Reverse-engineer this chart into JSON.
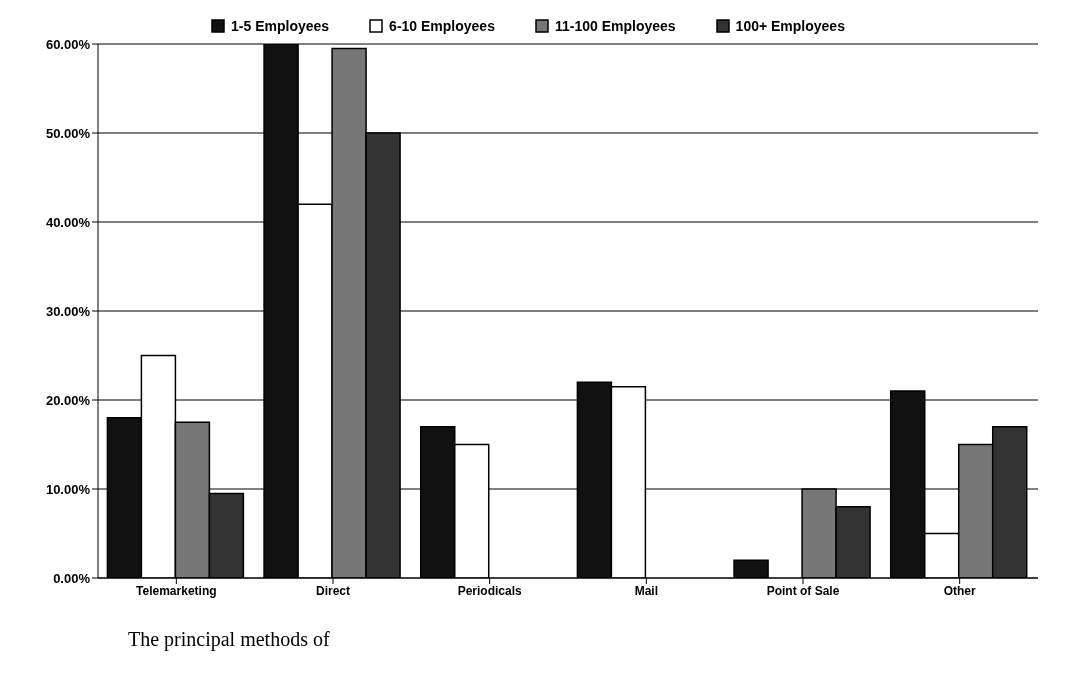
{
  "chart_data": {
    "type": "bar",
    "categories": [
      "Telemarketing",
      "Direct",
      "Periodicals",
      "Mail",
      "Point of Sale",
      "Other"
    ],
    "series": [
      {
        "name": "1-5 Employees",
        "color": "#111111",
        "values": [
          18,
          60,
          17,
          22,
          2,
          21
        ]
      },
      {
        "name": "6-10 Employees",
        "color": "#ffffff",
        "values": [
          25,
          42,
          15,
          21.5,
          0,
          5
        ]
      },
      {
        "name": "11-100 Employees",
        "color": "#777777",
        "values": [
          17.5,
          59.5,
          0,
          0,
          10,
          15
        ]
      },
      {
        "name": "100+ Employees",
        "color": "#333333",
        "values": [
          9.5,
          50,
          0,
          0,
          8,
          17
        ]
      }
    ],
    "ylim": [
      0,
      60
    ],
    "yticks": [
      {
        "value": 0,
        "label": "0.00%"
      },
      {
        "value": 10,
        "label": "10.00%"
      },
      {
        "value": 20,
        "label": "20.00%"
      },
      {
        "value": 30,
        "label": "30.00%"
      },
      {
        "value": 40,
        "label": "40.00%"
      },
      {
        "value": 50,
        "label": "50.00%"
      },
      {
        "value": 60,
        "label": "60.00%"
      }
    ],
    "grid": "y",
    "legend": "top",
    "annotations": [
      "The principal methods of"
    ]
  }
}
